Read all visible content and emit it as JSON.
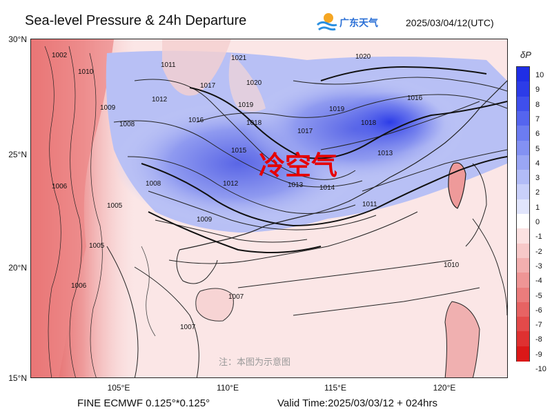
{
  "header": {
    "title": "Sea-level Pressure & 24h Departure",
    "logo_text": "广东天气",
    "datetime": "2025/03/04/12(UTC)"
  },
  "map": {
    "annotation": "冷空气",
    "watermark": "注：本图为示意图",
    "lat_labels": [
      "30°N",
      "25°N",
      "20°N",
      "15°N"
    ],
    "lon_labels": [
      "105°E",
      "110°E",
      "115°E",
      "120°E"
    ],
    "isobar_labels": [
      "1002",
      "1010",
      "1009",
      "1008",
      "1011",
      "1012",
      "1016",
      "1017",
      "1018",
      "1019",
      "1020",
      "1021",
      "1015",
      "1013",
      "1014",
      "1006",
      "1005",
      "1007",
      "1017",
      "1018",
      "1019",
      "1020",
      "1016",
      "1013",
      "1012",
      "1011",
      "1010",
      "1009",
      "1008",
      "1007",
      "1006",
      "1005"
    ]
  },
  "colorbar": {
    "title": "δP",
    "labels": [
      "10",
      "9",
      "8",
      "7",
      "6",
      "5",
      "4",
      "3",
      "2",
      "1",
      "0",
      "-1",
      "-2",
      "-3",
      "-4",
      "-5",
      "-6",
      "-7",
      "-8",
      "-9",
      "-10"
    ],
    "colors": [
      "#1f2ee6",
      "#2c3ce8",
      "#3f4fec",
      "#5565ef",
      "#6c7cf1",
      "#8391f3",
      "#9aa6f5",
      "#b2bcf7",
      "#c9d0fa",
      "#e1e5fc",
      "#ffffff",
      "#fbe1e1",
      "#f7c8c8",
      "#f3afaf",
      "#ef9595",
      "#eb7c7c",
      "#e76363",
      "#e34a4a",
      "#df3131",
      "#db1818"
    ]
  },
  "footer": {
    "model": "FINE ECMWF 0.125°*0.125°",
    "valid": "Valid Time:2025/03/03/12 + 024hrs"
  }
}
